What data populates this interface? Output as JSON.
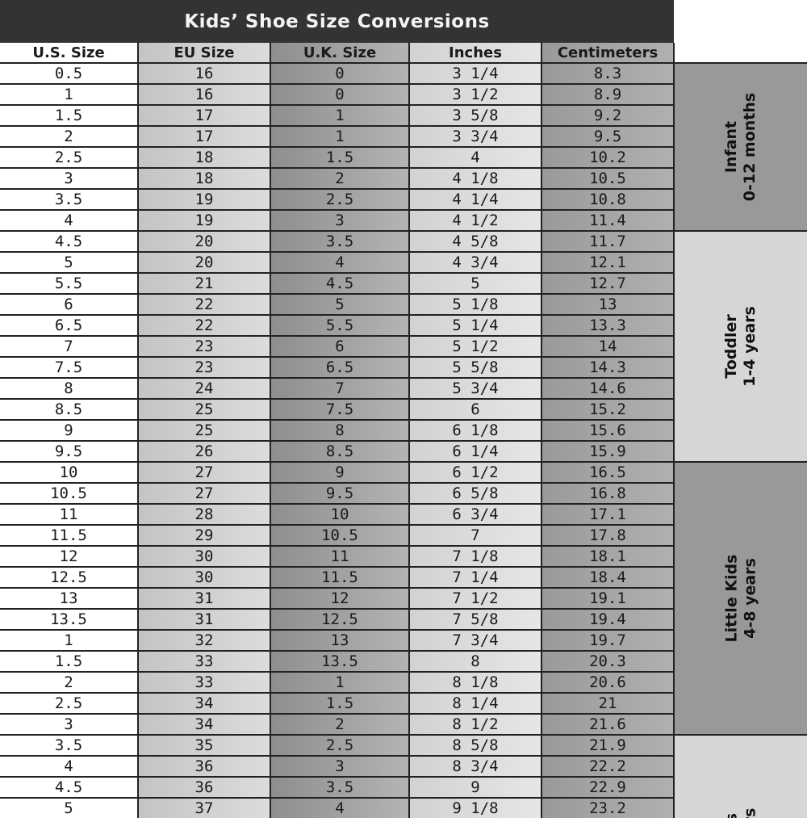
{
  "title": "Kids’ Shoe Size Conversions",
  "columns": [
    "U.S. Size",
    "EU Size",
    "U.K. Size",
    "Inches",
    "Centimeters"
  ],
  "rows": [
    [
      "0.5",
      "16",
      "0",
      "3 1/4",
      "8.3"
    ],
    [
      "1",
      "16",
      "0",
      "3 1/2",
      "8.9"
    ],
    [
      "1.5",
      "17",
      "1",
      "3 5/8",
      "9.2"
    ],
    [
      "2",
      "17",
      "1",
      "3 3/4",
      "9.5"
    ],
    [
      "2.5",
      "18",
      "1.5",
      "4",
      "10.2"
    ],
    [
      "3",
      "18",
      "2",
      "4 1/8",
      "10.5"
    ],
    [
      "3.5",
      "19",
      "2.5",
      "4 1/4",
      "10.8"
    ],
    [
      "4",
      "19",
      "3",
      "4 1/2",
      "11.4"
    ],
    [
      "4.5",
      "20",
      "3.5",
      "4 5/8",
      "11.7"
    ],
    [
      "5",
      "20",
      "4",
      "4 3/4",
      "12.1"
    ],
    [
      "5.5",
      "21",
      "4.5",
      "5",
      "12.7"
    ],
    [
      "6",
      "22",
      "5",
      "5 1/8",
      "13"
    ],
    [
      "6.5",
      "22",
      "5.5",
      "5 1/4",
      "13.3"
    ],
    [
      "7",
      "23",
      "6",
      "5 1/2",
      "14"
    ],
    [
      "7.5",
      "23",
      "6.5",
      "5 5/8",
      "14.3"
    ],
    [
      "8",
      "24",
      "7",
      "5 3/4",
      "14.6"
    ],
    [
      "8.5",
      "25",
      "7.5",
      "6",
      "15.2"
    ],
    [
      "9",
      "25",
      "8",
      "6 1/8",
      "15.6"
    ],
    [
      "9.5",
      "26",
      "8.5",
      "6 1/4",
      "15.9"
    ],
    [
      "10",
      "27",
      "9",
      "6 1/2",
      "16.5"
    ],
    [
      "10.5",
      "27",
      "9.5",
      "6 5/8",
      "16.8"
    ],
    [
      "11",
      "28",
      "10",
      "6 3/4",
      "17.1"
    ],
    [
      "11.5",
      "29",
      "10.5",
      "7",
      "17.8"
    ],
    [
      "12",
      "30",
      "11",
      "7 1/8",
      "18.1"
    ],
    [
      "12.5",
      "30",
      "11.5",
      "7 1/4",
      "18.4"
    ],
    [
      "13",
      "31",
      "12",
      "7 1/2",
      "19.1"
    ],
    [
      "13.5",
      "31",
      "12.5",
      "7 5/8",
      "19.4"
    ],
    [
      "1",
      "32",
      "13",
      "7 3/4",
      "19.7"
    ],
    [
      "1.5",
      "33",
      "13.5",
      "8",
      "20.3"
    ],
    [
      "2",
      "33",
      "1",
      "8 1/8",
      "20.6"
    ],
    [
      "2.5",
      "34",
      "1.5",
      "8 1/4",
      "21"
    ],
    [
      "3",
      "34",
      "2",
      "8 1/2",
      "21.6"
    ],
    [
      "3.5",
      "35",
      "2.5",
      "8 5/8",
      "21.9"
    ],
    [
      "4",
      "36",
      "3",
      "8 3/4",
      "22.2"
    ],
    [
      "4.5",
      "36",
      "3.5",
      "9",
      "22.9"
    ],
    [
      "5",
      "37",
      "4",
      "9 1/8",
      "23.2"
    ]
  ],
  "groups": [
    {
      "name": "Infant",
      "range": "0-12 months",
      "rows": 8,
      "tone": "dark"
    },
    {
      "name": "Toddler",
      "range": "1-4 years",
      "rows": 11,
      "tone": "light"
    },
    {
      "name": "Little Kids",
      "range": "4-8 years",
      "rows": 13,
      "tone": "dark"
    },
    {
      "name": "Kids",
      "range": "years",
      "rows": 4,
      "tone": "light"
    }
  ],
  "colors": {
    "title_bg": "#333333",
    "dark_group": "#999999",
    "light_group": "#d6d6d6"
  }
}
